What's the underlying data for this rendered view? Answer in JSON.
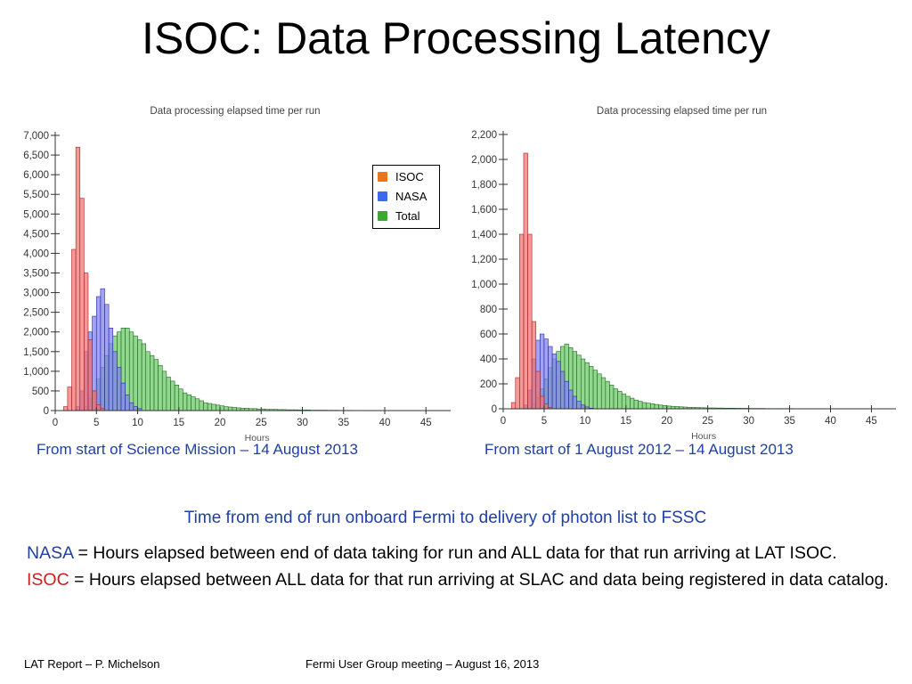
{
  "slide": {
    "title": "ISOC: Data Processing Latency",
    "subtitle_line": "Time from end of run onboard Fermi to delivery of photon list to FSSC",
    "defs": [
      {
        "keyword": "NASA",
        "text": " = Hours elapsed between end of data taking for run and ALL data for that run arriving at LAT ISOC."
      },
      {
        "keyword": "ISOC",
        "text": " = Hours elapsed between ALL data for that run arriving at SLAC and data being registered in data catalog."
      }
    ],
    "footer_left": "LAT Report – P. Michelson",
    "footer_center": "Fermi User Group meeting – August 16, 2013"
  },
  "legend": [
    {
      "label": "ISOC",
      "color": "#e8761c"
    },
    {
      "label": "NASA",
      "color": "#3d68f0"
    },
    {
      "label": "Total",
      "color": "#3aa832"
    }
  ],
  "colors": {
    "isoc": "#f07070",
    "nasa": "#7f7ff2",
    "total": "#7fd07a",
    "overlap": "#2f7f8f"
  },
  "chart_data": [
    {
      "type": "bar",
      "title": "Data processing elapsed time per run",
      "xlabel": "Hours",
      "ylabel": "",
      "caption": "From start of Science Mission – 14 August 2013",
      "xlim": [
        0,
        48
      ],
      "ylim": [
        0,
        7000
      ],
      "xticks": [
        0,
        5,
        10,
        15,
        20,
        25,
        30,
        35,
        40,
        45
      ],
      "yticks": [
        0,
        500,
        1000,
        1500,
        2000,
        2500,
        3000,
        3500,
        4000,
        4500,
        5000,
        5500,
        6000,
        6500,
        7000
      ],
      "ytick_labels": [
        "0",
        "500",
        "1,000",
        "1,500",
        "2,000",
        "2,500",
        "3,000",
        "3,500",
        "4,000",
        "4,500",
        "5,000",
        "5,500",
        "6,000",
        "6,500",
        "7,000"
      ],
      "bin_width": 0.5,
      "bin_start": 0,
      "series": [
        {
          "name": "ISOC",
          "values": [
            0,
            0,
            100,
            600,
            4100,
            6700,
            5400,
            3500,
            1800,
            500,
            150,
            50,
            0,
            0,
            0,
            0
          ]
        },
        {
          "name": "NASA",
          "values": [
            0,
            0,
            0,
            0,
            0,
            100,
            500,
            1500,
            2000,
            2400,
            2900,
            3100,
            2700,
            2100,
            1500,
            1100,
            700,
            400,
            200,
            100,
            50,
            0,
            0,
            0,
            0,
            0,
            0,
            0
          ]
        },
        {
          "name": "Total",
          "values": [
            0,
            0,
            0,
            0,
            0,
            0,
            0,
            100,
            300,
            500,
            800,
            1100,
            1400,
            1700,
            1900,
            2000,
            2100,
            2100,
            2000,
            1900,
            1800,
            1700,
            1500,
            1400,
            1300,
            1150,
            1000,
            850,
            750,
            650,
            550,
            450,
            400,
            350,
            300,
            250,
            200,
            180,
            160,
            140,
            120,
            100,
            90,
            80,
            70,
            60,
            60,
            50,
            50,
            40,
            40,
            30,
            30,
            30,
            25,
            25,
            20,
            20,
            20,
            15,
            15,
            15,
            10,
            10,
            10,
            10,
            8,
            8,
            8,
            6,
            6,
            6,
            5,
            5,
            5,
            4,
            4,
            4,
            3,
            3,
            3,
            2,
            2,
            2,
            2,
            1,
            1,
            1,
            1,
            1,
            1,
            1,
            1,
            1,
            1,
            1
          ]
        }
      ]
    },
    {
      "type": "bar",
      "title": "Data processing elapsed time per run",
      "xlabel": "Hours",
      "ylabel": "",
      "caption": "From start of 1 August 2012 – 14 August 2013",
      "xlim": [
        0,
        48
      ],
      "ylim": [
        0,
        2200
      ],
      "xticks": [
        0,
        5,
        10,
        15,
        20,
        25,
        30,
        35,
        40,
        45
      ],
      "yticks": [
        0,
        200,
        400,
        600,
        800,
        1000,
        1200,
        1400,
        1600,
        1800,
        2000,
        2200
      ],
      "ytick_labels": [
        "0",
        "200",
        "400",
        "600",
        "800",
        "1,000",
        "1,200",
        "1,400",
        "1,600",
        "1,800",
        "2,000",
        "2,200"
      ],
      "bin_width": 0.5,
      "bin_start": 0,
      "series": [
        {
          "name": "ISOC",
          "values": [
            0,
            0,
            50,
            250,
            1400,
            2050,
            1400,
            700,
            300,
            100,
            40,
            10,
            0,
            0,
            0,
            0
          ]
        },
        {
          "name": "NASA",
          "values": [
            0,
            0,
            0,
            0,
            0,
            30,
            150,
            400,
            550,
            600,
            560,
            500,
            440,
            380,
            300,
            220,
            150,
            100,
            60,
            30,
            15,
            5,
            0,
            0,
            0,
            0,
            0,
            0
          ]
        },
        {
          "name": "Total",
          "values": [
            0,
            0,
            0,
            0,
            0,
            0,
            0,
            40,
            90,
            160,
            240,
            330,
            400,
            460,
            500,
            520,
            490,
            460,
            430,
            400,
            370,
            340,
            310,
            280,
            250,
            220,
            190,
            160,
            140,
            120,
            100,
            85,
            70,
            60,
            50,
            45,
            40,
            35,
            30,
            26,
            22,
            20,
            18,
            16,
            14,
            12,
            11,
            10,
            9,
            8,
            7,
            7,
            6,
            6,
            5,
            5,
            5,
            4,
            4,
            4,
            3,
            3,
            3,
            3,
            2,
            2,
            2,
            2,
            2,
            2,
            2,
            1,
            1,
            1,
            1,
            1,
            1,
            1,
            1,
            1,
            1,
            1,
            1,
            1,
            1,
            1,
            1,
            1,
            1,
            1,
            1,
            1,
            1,
            1
          ]
        }
      ]
    }
  ]
}
